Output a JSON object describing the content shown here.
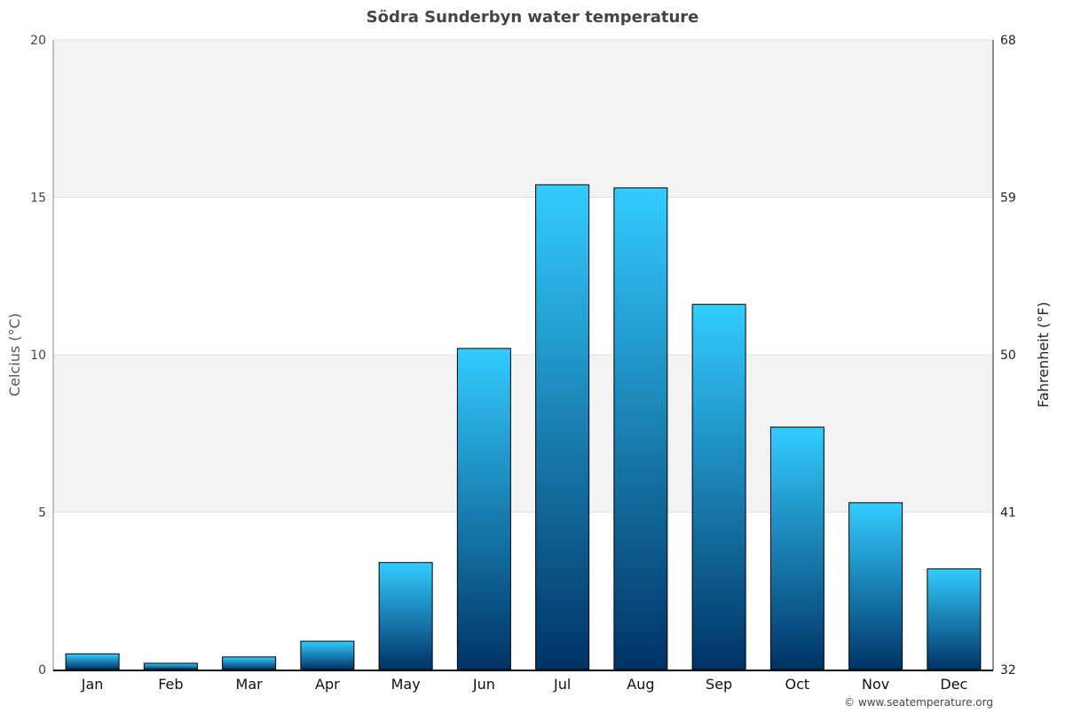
{
  "chart_data": {
    "type": "bar",
    "title": "Södra Sunderbyn water temperature",
    "ylabel": "Celcius (°C)",
    "y2label": "Fahrenheit (°F)",
    "ylim": [
      0,
      20
    ],
    "y2lim": [
      32,
      68
    ],
    "yticks": [
      "0",
      "5",
      "10",
      "15",
      "20"
    ],
    "y2ticks": [
      "32",
      "41",
      "50",
      "59",
      "68"
    ],
    "categories": [
      "Jan",
      "Feb",
      "Mar",
      "Apr",
      "May",
      "Jun",
      "Jul",
      "Aug",
      "Sep",
      "Oct",
      "Nov",
      "Dec"
    ],
    "values": [
      0.5,
      0.2,
      0.4,
      0.9,
      3.4,
      10.2,
      15.4,
      15.3,
      11.6,
      7.7,
      5.3,
      3.2
    ],
    "bar_color_top": "#33ccff",
    "bar_color_bottom": "#003366",
    "band_color": "#f3f3f3"
  },
  "credit": "© www.seatemperature.org"
}
